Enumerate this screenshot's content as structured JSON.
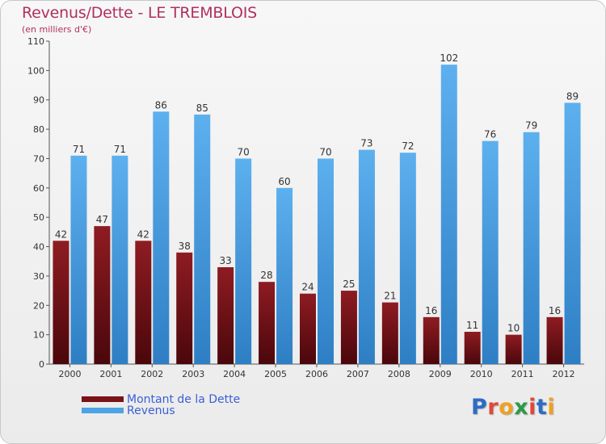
{
  "header": {
    "title": "Revenus/Dette - LE TREMBLOIS",
    "subtitle": "(en milliers d'€)"
  },
  "colors": {
    "debt": "#7a1318",
    "revenue": "#4da3e6",
    "title": "#b03060",
    "legend_text": "#3a5fd6"
  },
  "legend": [
    {
      "label": "Montant de la Dette",
      "color": "#7a1318"
    },
    {
      "label": "Revenus",
      "color": "#4da3e6"
    }
  ],
  "logo": {
    "text": "Proxiti",
    "letter_colors": [
      "#2b6cc4",
      "#e0483a",
      "#f0a020",
      "#2a9a48",
      "#e0483a",
      "#2b6cc4",
      "#f0a020"
    ]
  },
  "chart_data": {
    "type": "bar",
    "categories": [
      "2000",
      "2001",
      "2002",
      "2003",
      "2004",
      "2005",
      "2006",
      "2007",
      "2008",
      "2009",
      "2010",
      "2011",
      "2012"
    ],
    "series": [
      {
        "name": "Montant de la Dette",
        "values": [
          42,
          47,
          42,
          38,
          33,
          28,
          24,
          25,
          21,
          16,
          11,
          10,
          16
        ]
      },
      {
        "name": "Revenus",
        "values": [
          71,
          71,
          86,
          85,
          70,
          60,
          70,
          73,
          72,
          102,
          76,
          79,
          89
        ]
      }
    ],
    "ylim": [
      0,
      110
    ],
    "yticks": [
      0,
      10,
      20,
      30,
      40,
      50,
      60,
      70,
      80,
      90,
      100,
      110
    ],
    "grid": false,
    "legend_position": "bottom-left"
  }
}
